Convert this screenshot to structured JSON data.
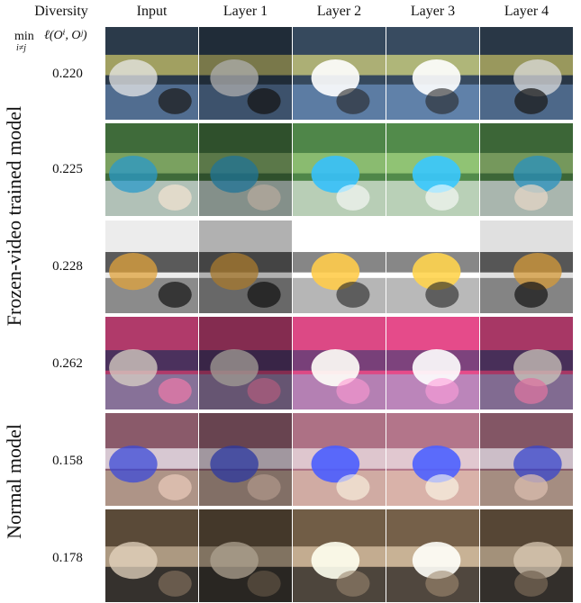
{
  "headers": {
    "diversity": "Diversity",
    "input": "Input",
    "layer1": "Layer 1",
    "layer2": "Layer 2",
    "layer3": "Layer 3",
    "layer4": "Layer 4"
  },
  "formula": {
    "min": "min",
    "subscript": "i≠j",
    "expr": "ℓ(Oⁱ, Oʲ)"
  },
  "groups": {
    "frozen": "Frozen-video trained model",
    "normal": "Normal model"
  },
  "rows": [
    {
      "diversity": "0.220",
      "palette": [
        "#2b3a4a",
        "#c9c36a",
        "#5f7fa8",
        "#e8e8e8",
        "#1d1d1d"
      ]
    },
    {
      "diversity": "0.225",
      "palette": [
        "#3f6b3a",
        "#8fb36e",
        "#d8dde2",
        "#2b9ac9",
        "#f2e1d0"
      ]
    },
    {
      "diversity": "0.228",
      "palette": [
        "#ececec",
        "#2a2a2a",
        "#6b6b6b",
        "#e0a33c",
        "#1a1a1a"
      ]
    },
    {
      "diversity": "0.262",
      "palette": [
        "#b03a6a",
        "#2a2f5a",
        "#7a84a8",
        "#d9d1c6",
        "#e87aa8"
      ]
    },
    {
      "diversity": "0.158",
      "palette": [
        "#8a5a6a",
        "#f0eef6",
        "#b9a892",
        "#3b4ad8",
        "#e7c8b8"
      ]
    },
    {
      "diversity": "0.178",
      "palette": [
        "#5a4a38",
        "#c8b49a",
        "#2a2a2a",
        "#e6d6c0",
        "#7b6a58"
      ]
    }
  ],
  "colors": {
    "background": "#ffffff",
    "text": "#111111"
  }
}
